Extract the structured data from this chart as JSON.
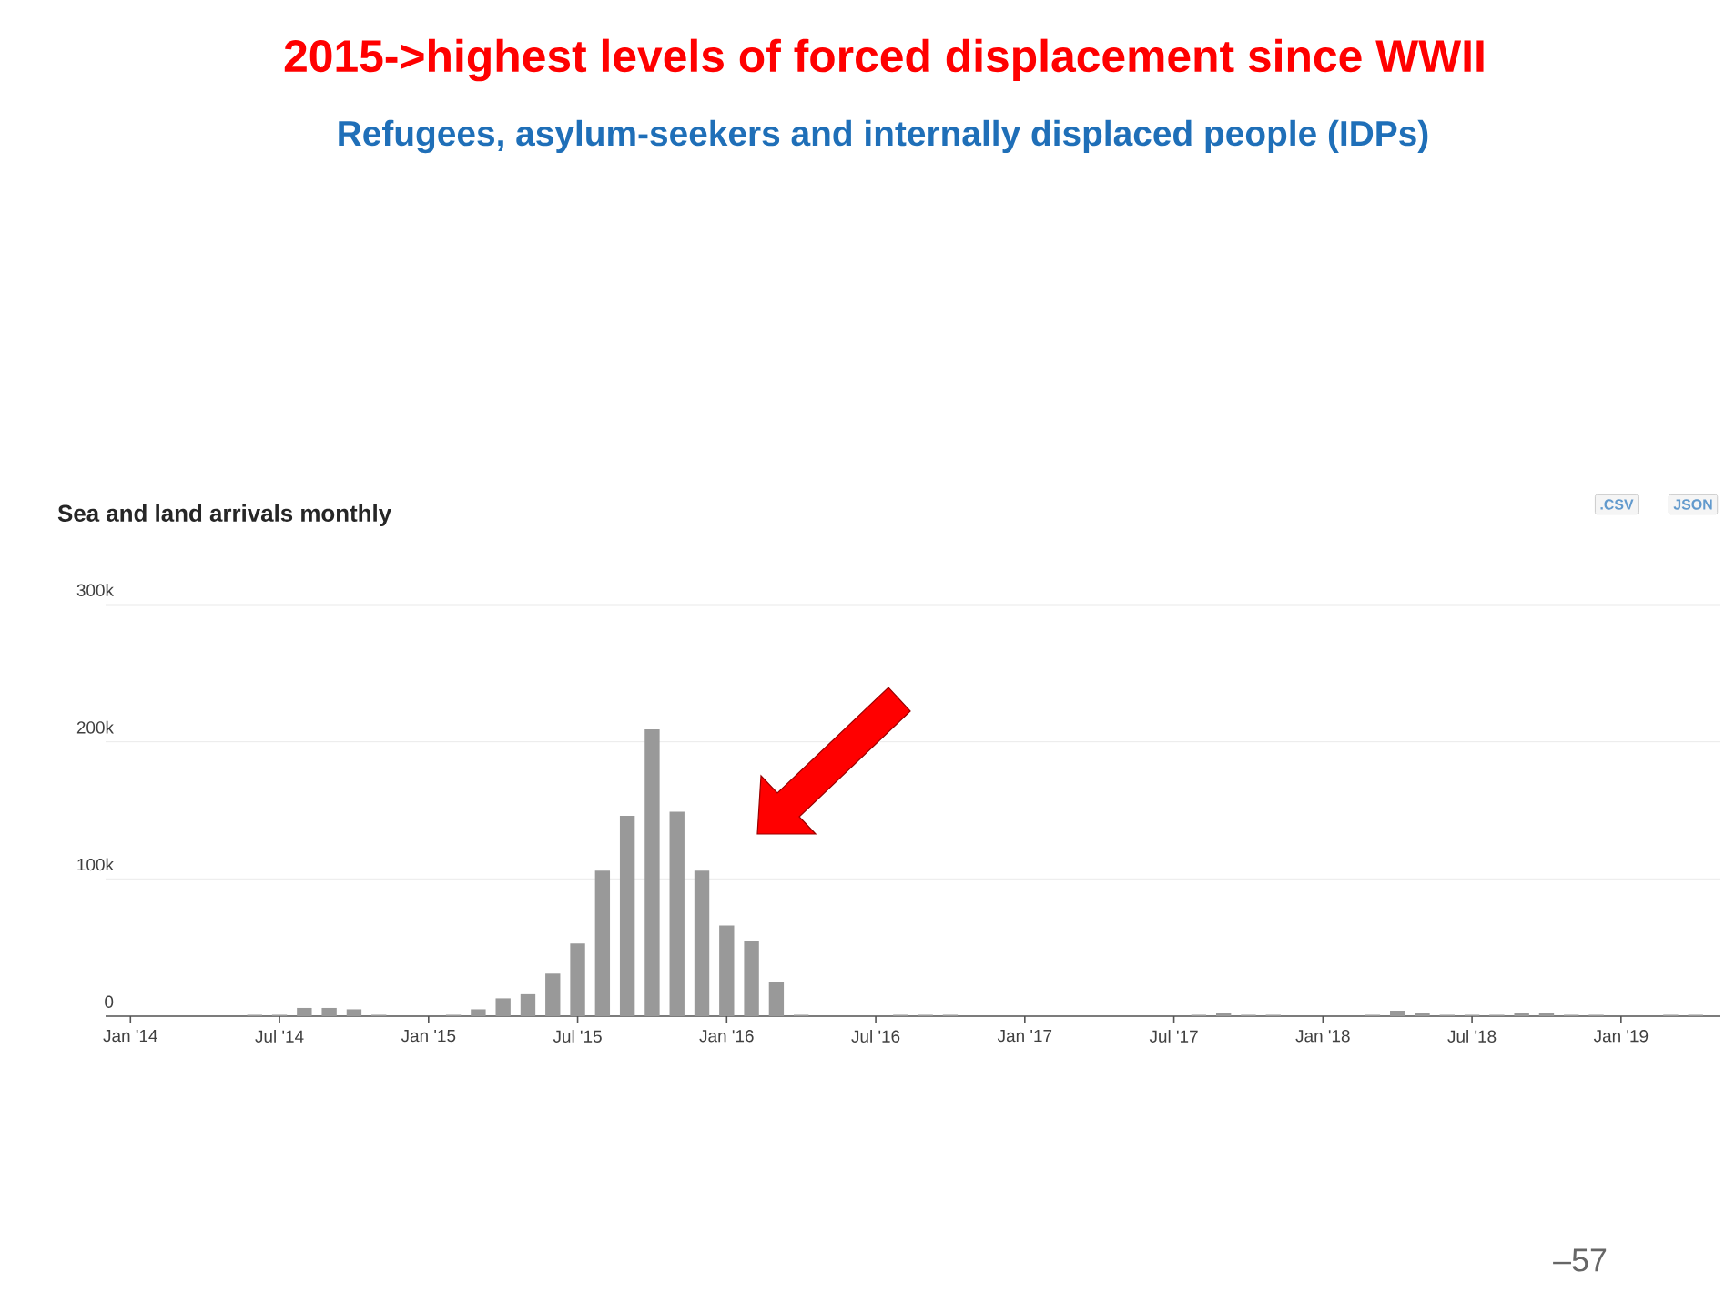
{
  "chart_data": {
    "type": "bar",
    "title": "2015->highest levels of forced displacement since WWII",
    "subtitle": "Refugees, asylum-seekers and internally displaced people (IDPs)",
    "annotations": [
      "Sea and land arrivals monthly",
      ".CSV",
      "JSON",
      "–57"
    ],
    "x": [
      "2014-01",
      "2014-02",
      "2014-03",
      "2014-04",
      "2014-05",
      "2014-06",
      "2014-07",
      "2014-08",
      "2014-09",
      "2014-10",
      "2014-11",
      "2014-12",
      "2015-01",
      "2015-02",
      "2015-03",
      "2015-04",
      "2015-05",
      "2015-06",
      "2015-07",
      "2015-08",
      "2015-09",
      "2015-10",
      "2015-11",
      "2015-12",
      "2016-01",
      "2016-02",
      "2016-03",
      "2016-04",
      "2016-05",
      "2016-06",
      "2016-07",
      "2016-08",
      "2016-09",
      "2016-10",
      "2016-11",
      "2016-12",
      "2017-01",
      "2017-02",
      "2017-03",
      "2017-04",
      "2017-05",
      "2017-06",
      "2017-07",
      "2017-08",
      "2017-09",
      "2017-10",
      "2017-11",
      "2017-12",
      "2018-01",
      "2018-02",
      "2018-03",
      "2018-04",
      "2018-05",
      "2018-06",
      "2018-07",
      "2018-08",
      "2018-09",
      "2018-10",
      "2018-11",
      "2018-12",
      "2019-01",
      "2019-02",
      "2019-03",
      "2019-04"
    ],
    "values": [
      0,
      0,
      0,
      0,
      0,
      1000,
      1000,
      6000,
      6000,
      5000,
      1000,
      0,
      0,
      1000,
      5000,
      13000,
      16000,
      31000,
      53000,
      106000,
      146000,
      209000,
      149000,
      106000,
      66000,
      55000,
      25000,
      1000,
      0,
      0,
      0,
      1000,
      1000,
      1000,
      0,
      0,
      0,
      0,
      0,
      0,
      0,
      0,
      0,
      1000,
      2000,
      1000,
      1000,
      0,
      0,
      0,
      1000,
      4000,
      2000,
      1000,
      1000,
      1000,
      2000,
      2000,
      1000,
      1000,
      0,
      0,
      1000,
      1000
    ],
    "color": "#999999",
    "xlim": [
      "2013-12",
      "2019-05"
    ],
    "xticks": [
      {
        "value": "2014-01",
        "label": "Jan '14"
      },
      {
        "value": "2014-07",
        "label": "Jul '14"
      },
      {
        "value": "2015-01",
        "label": "Jan '15"
      },
      {
        "value": "2015-07",
        "label": "Jul '15"
      },
      {
        "value": "2016-01",
        "label": "Jan '16"
      },
      {
        "value": "2016-07",
        "label": "Jul '16"
      },
      {
        "value": "2017-01",
        "label": "Jan '17"
      },
      {
        "value": "2017-07",
        "label": "Jul '17"
      },
      {
        "value": "2018-01",
        "label": "Jan '18"
      },
      {
        "value": "2018-07",
        "label": "Jul '18"
      },
      {
        "value": "2019-01",
        "label": "Jan '19"
      }
    ],
    "ylim": [
      0,
      300000
    ],
    "yticks": [
      0,
      {
        "value": 100000,
        "label": "100k"
      },
      {
        "value": 200000,
        "label": "200k"
      },
      {
        "value": 300000,
        "label": "300k"
      }
    ],
    "grid": "y"
  }
}
